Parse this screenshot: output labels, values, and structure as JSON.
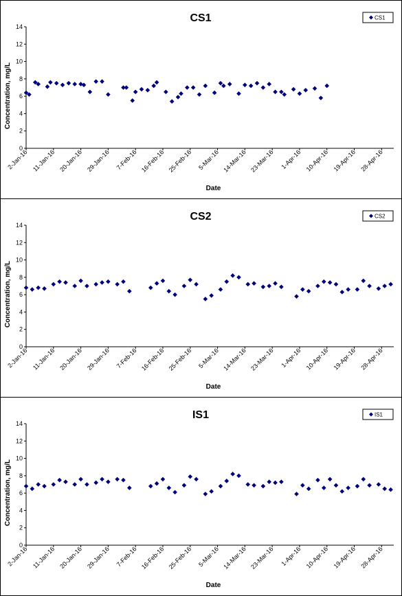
{
  "chart_data": [
    {
      "type": "scatter",
      "title": "CS1",
      "xlabel": "Date",
      "ylabel": "Concentration, mg/L",
      "ylim": [
        0,
        14
      ],
      "yticks": [
        0,
        2,
        4,
        6,
        8,
        10,
        12,
        14
      ],
      "x_tick_labels": [
        "2-Jan-16",
        "11-Jan-16",
        "20-Jan-16",
        "29-Jan-16",
        "7-Feb-16",
        "16-Feb-16",
        "25-Feb-16",
        "5-Mar-16",
        "14-Mar-16",
        "23-Mar-16",
        "1-Apr-16",
        "10-Apr-16",
        "19-Apr-16",
        "28-Apr-16"
      ],
      "xlim": [
        "2-Jan-16",
        "2-May-16"
      ],
      "legend": "top-right",
      "color": "#00007f",
      "series": [
        {
          "name": "CS1",
          "points": [
            {
              "x": "2-Jan-16",
              "y": 6.4
            },
            {
              "x": "3-Jan-16",
              "y": 6.2
            },
            {
              "x": "5-Jan-16",
              "y": 7.6
            },
            {
              "x": "6-Jan-16",
              "y": 7.4
            },
            {
              "x": "9-Jan-16",
              "y": 7.1
            },
            {
              "x": "10-Jan-16",
              "y": 7.6
            },
            {
              "x": "12-Jan-16",
              "y": 7.5
            },
            {
              "x": "14-Jan-16",
              "y": 7.3
            },
            {
              "x": "16-Jan-16",
              "y": 7.5
            },
            {
              "x": "18-Jan-16",
              "y": 7.4
            },
            {
              "x": "20-Jan-16",
              "y": 7.4
            },
            {
              "x": "21-Jan-16",
              "y": 7.3
            },
            {
              "x": "23-Jan-16",
              "y": 6.5
            },
            {
              "x": "25-Jan-16",
              "y": 7.7
            },
            {
              "x": "27-Jan-16",
              "y": 7.7
            },
            {
              "x": "29-Jan-16",
              "y": 6.2
            },
            {
              "x": "3-Feb-16",
              "y": 7.0
            },
            {
              "x": "4-Feb-16",
              "y": 7.0
            },
            {
              "x": "6-Feb-16",
              "y": 5.5
            },
            {
              "x": "7-Feb-16",
              "y": 6.5
            },
            {
              "x": "9-Feb-16",
              "y": 6.8
            },
            {
              "x": "11-Feb-16",
              "y": 6.7
            },
            {
              "x": "13-Feb-16",
              "y": 7.2
            },
            {
              "x": "14-Feb-16",
              "y": 7.6
            },
            {
              "x": "17-Feb-16",
              "y": 6.5
            },
            {
              "x": "19-Feb-16",
              "y": 5.4
            },
            {
              "x": "21-Feb-16",
              "y": 5.9
            },
            {
              "x": "22-Feb-16",
              "y": 6.3
            },
            {
              "x": "24-Feb-16",
              "y": 7.0
            },
            {
              "x": "26-Feb-16",
              "y": 7.0
            },
            {
              "x": "28-Feb-16",
              "y": 6.2
            },
            {
              "x": "1-Mar-16",
              "y": 7.2
            },
            {
              "x": "4-Mar-16",
              "y": 6.4
            },
            {
              "x": "6-Mar-16",
              "y": 7.5
            },
            {
              "x": "7-Mar-16",
              "y": 7.2
            },
            {
              "x": "9-Mar-16",
              "y": 7.4
            },
            {
              "x": "12-Mar-16",
              "y": 6.3
            },
            {
              "x": "14-Mar-16",
              "y": 7.3
            },
            {
              "x": "16-Mar-16",
              "y": 7.2
            },
            {
              "x": "18-Mar-16",
              "y": 7.5
            },
            {
              "x": "20-Mar-16",
              "y": 7.0
            },
            {
              "x": "22-Mar-16",
              "y": 7.4
            },
            {
              "x": "24-Mar-16",
              "y": 6.5
            },
            {
              "x": "26-Mar-16",
              "y": 6.5
            },
            {
              "x": "27-Mar-16",
              "y": 6.2
            },
            {
              "x": "30-Mar-16",
              "y": 6.8
            },
            {
              "x": "1-Apr-16",
              "y": 6.3
            },
            {
              "x": "3-Apr-16",
              "y": 6.7
            },
            {
              "x": "6-Apr-16",
              "y": 6.9
            },
            {
              "x": "8-Apr-16",
              "y": 5.8
            },
            {
              "x": "10-Apr-16",
              "y": 7.2
            }
          ]
        }
      ]
    },
    {
      "type": "scatter",
      "title": "CS2",
      "xlabel": "Date",
      "ylabel": "Concentration, mg/L",
      "ylim": [
        0,
        14
      ],
      "yticks": [
        0,
        2,
        4,
        6,
        8,
        10,
        12,
        14
      ],
      "x_tick_labels": [
        "2-Jan-16",
        "11-Jan-16",
        "20-Jan-16",
        "29-Jan-16",
        "7-Feb-16",
        "16-Feb-16",
        "25-Feb-16",
        "5-Mar-16",
        "14-Mar-16",
        "23-Mar-16",
        "1-Apr-16",
        "10-Apr-16",
        "19-Apr-16",
        "28-Apr-16"
      ],
      "xlim": [
        "2-Jan-16",
        "2-May-16"
      ],
      "legend": "top-right",
      "color": "#00007f",
      "series": [
        {
          "name": "CS2",
          "points": [
            {
              "x": "2-Jan-16",
              "y": 6.8
            },
            {
              "x": "4-Jan-16",
              "y": 6.6
            },
            {
              "x": "6-Jan-16",
              "y": 6.8
            },
            {
              "x": "8-Jan-16",
              "y": 6.7
            },
            {
              "x": "11-Jan-16",
              "y": 7.2
            },
            {
              "x": "13-Jan-16",
              "y": 7.5
            },
            {
              "x": "15-Jan-16",
              "y": 7.4
            },
            {
              "x": "18-Jan-16",
              "y": 7.0
            },
            {
              "x": "20-Jan-16",
              "y": 7.6
            },
            {
              "x": "22-Jan-16",
              "y": 7.0
            },
            {
              "x": "25-Jan-16",
              "y": 7.2
            },
            {
              "x": "27-Jan-16",
              "y": 7.4
            },
            {
              "x": "29-Jan-16",
              "y": 7.5
            },
            {
              "x": "1-Feb-16",
              "y": 7.2
            },
            {
              "x": "3-Feb-16",
              "y": 7.5
            },
            {
              "x": "5-Feb-16",
              "y": 6.4
            },
            {
              "x": "12-Feb-16",
              "y": 6.8
            },
            {
              "x": "14-Feb-16",
              "y": 7.3
            },
            {
              "x": "16-Feb-16",
              "y": 7.6
            },
            {
              "x": "18-Feb-16",
              "y": 6.4
            },
            {
              "x": "20-Feb-16",
              "y": 6.0
            },
            {
              "x": "23-Feb-16",
              "y": 7.0
            },
            {
              "x": "25-Feb-16",
              "y": 7.7
            },
            {
              "x": "27-Feb-16",
              "y": 7.2
            },
            {
              "x": "1-Mar-16",
              "y": 5.5
            },
            {
              "x": "3-Mar-16",
              "y": 5.9
            },
            {
              "x": "6-Mar-16",
              "y": 6.6
            },
            {
              "x": "8-Mar-16",
              "y": 7.5
            },
            {
              "x": "10-Mar-16",
              "y": 8.2
            },
            {
              "x": "12-Mar-16",
              "y": 8.0
            },
            {
              "x": "15-Mar-16",
              "y": 7.2
            },
            {
              "x": "17-Mar-16",
              "y": 7.3
            },
            {
              "x": "20-Mar-16",
              "y": 6.9
            },
            {
              "x": "22-Mar-16",
              "y": 7.0
            },
            {
              "x": "24-Mar-16",
              "y": 7.3
            },
            {
              "x": "26-Mar-16",
              "y": 6.9
            },
            {
              "x": "31-Mar-16",
              "y": 5.8
            },
            {
              "x": "2-Apr-16",
              "y": 6.6
            },
            {
              "x": "4-Apr-16",
              "y": 6.4
            },
            {
              "x": "7-Apr-16",
              "y": 7.0
            },
            {
              "x": "9-Apr-16",
              "y": 7.5
            },
            {
              "x": "11-Apr-16",
              "y": 7.4
            },
            {
              "x": "13-Apr-16",
              "y": 7.2
            },
            {
              "x": "15-Apr-16",
              "y": 6.3
            },
            {
              "x": "17-Apr-16",
              "y": 6.6
            },
            {
              "x": "20-Apr-16",
              "y": 6.6
            },
            {
              "x": "22-Apr-16",
              "y": 7.6
            },
            {
              "x": "24-Apr-16",
              "y": 7.0
            },
            {
              "x": "27-Apr-16",
              "y": 6.7
            },
            {
              "x": "29-Apr-16",
              "y": 7.0
            },
            {
              "x": "1-May-16",
              "y": 7.2
            }
          ]
        }
      ]
    },
    {
      "type": "scatter",
      "title": "IS1",
      "xlabel": "Date",
      "ylabel": "Concentration, mg/L",
      "ylim": [
        0,
        14
      ],
      "yticks": [
        0,
        2,
        4,
        6,
        8,
        10,
        12,
        14
      ],
      "x_tick_labels": [
        "2-Jan-16",
        "11-Jan-16",
        "20-Jan-16",
        "29-Jan-16",
        "7-Feb-16",
        "16-Feb-16",
        "25-Feb-16",
        "5-Mar-16",
        "14-Mar-16",
        "23-Mar-16",
        "1-Apr-16",
        "10-Apr-16",
        "19-Apr-16",
        "28-Apr-16"
      ],
      "xlim": [
        "2-Jan-16",
        "2-May-16"
      ],
      "legend": "top-right",
      "color": "#00007f",
      "series": [
        {
          "name": "IS1",
          "points": [
            {
              "x": "2-Jan-16",
              "y": 6.8
            },
            {
              "x": "4-Jan-16",
              "y": 6.5
            },
            {
              "x": "6-Jan-16",
              "y": 7.0
            },
            {
              "x": "8-Jan-16",
              "y": 6.8
            },
            {
              "x": "11-Jan-16",
              "y": 7.0
            },
            {
              "x": "13-Jan-16",
              "y": 7.5
            },
            {
              "x": "15-Jan-16",
              "y": 7.3
            },
            {
              "x": "18-Jan-16",
              "y": 7.0
            },
            {
              "x": "20-Jan-16",
              "y": 7.6
            },
            {
              "x": "22-Jan-16",
              "y": 7.0
            },
            {
              "x": "25-Jan-16",
              "y": 7.2
            },
            {
              "x": "27-Jan-16",
              "y": 7.6
            },
            {
              "x": "29-Jan-16",
              "y": 7.3
            },
            {
              "x": "1-Feb-16",
              "y": 7.6
            },
            {
              "x": "3-Feb-16",
              "y": 7.5
            },
            {
              "x": "5-Feb-16",
              "y": 6.6
            },
            {
              "x": "12-Feb-16",
              "y": 6.8
            },
            {
              "x": "14-Feb-16",
              "y": 7.1
            },
            {
              "x": "16-Feb-16",
              "y": 7.6
            },
            {
              "x": "18-Feb-16",
              "y": 6.6
            },
            {
              "x": "20-Feb-16",
              "y": 6.1
            },
            {
              "x": "23-Feb-16",
              "y": 6.9
            },
            {
              "x": "25-Feb-16",
              "y": 7.9
            },
            {
              "x": "27-Feb-16",
              "y": 7.6
            },
            {
              "x": "1-Mar-16",
              "y": 5.9
            },
            {
              "x": "3-Mar-16",
              "y": 6.2
            },
            {
              "x": "6-Mar-16",
              "y": 6.8
            },
            {
              "x": "8-Mar-16",
              "y": 7.4
            },
            {
              "x": "10-Mar-16",
              "y": 8.2
            },
            {
              "x": "12-Mar-16",
              "y": 8.0
            },
            {
              "x": "15-Mar-16",
              "y": 7.0
            },
            {
              "x": "17-Mar-16",
              "y": 6.9
            },
            {
              "x": "20-Mar-16",
              "y": 6.8
            },
            {
              "x": "22-Mar-16",
              "y": 7.3
            },
            {
              "x": "24-Mar-16",
              "y": 7.2
            },
            {
              "x": "26-Mar-16",
              "y": 7.3
            },
            {
              "x": "31-Mar-16",
              "y": 5.9
            },
            {
              "x": "2-Apr-16",
              "y": 6.9
            },
            {
              "x": "4-Apr-16",
              "y": 6.5
            },
            {
              "x": "7-Apr-16",
              "y": 7.5
            },
            {
              "x": "9-Apr-16",
              "y": 6.6
            },
            {
              "x": "11-Apr-16",
              "y": 7.6
            },
            {
              "x": "13-Apr-16",
              "y": 6.9
            },
            {
              "x": "15-Apr-16",
              "y": 6.2
            },
            {
              "x": "17-Apr-16",
              "y": 6.6
            },
            {
              "x": "20-Apr-16",
              "y": 6.8
            },
            {
              "x": "22-Apr-16",
              "y": 7.6
            },
            {
              "x": "24-Apr-16",
              "y": 6.9
            },
            {
              "x": "27-Apr-16",
              "y": 7.0
            },
            {
              "x": "29-Apr-16",
              "y": 6.5
            },
            {
              "x": "1-May-16",
              "y": 6.4
            }
          ]
        }
      ]
    }
  ]
}
